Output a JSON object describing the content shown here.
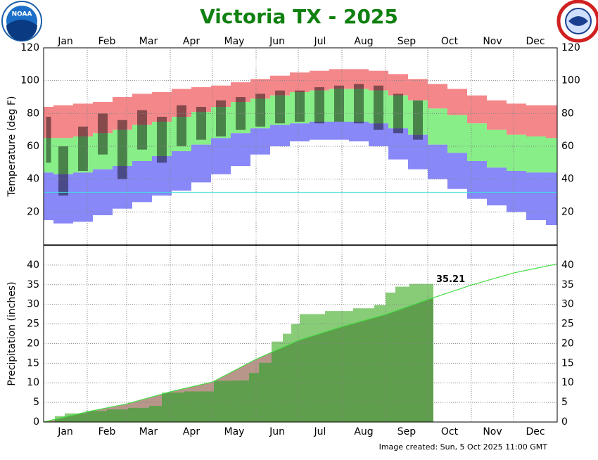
{
  "title": "Victoria TX - 2025",
  "logo": "NOAA",
  "footer": "Image created: Sun, 5 Oct 2025 11:00 GMT",
  "chart_data": [
    {
      "type": "temperature-bands",
      "ylabel": "Temperature (deg F)",
      "xlim": [
        0,
        365
      ],
      "xticks": [
        {
          "value": 0,
          "label": "Jan"
        },
        {
          "value": 31,
          "label": "Feb"
        },
        {
          "value": 59,
          "label": "Mar"
        },
        {
          "value": 90,
          "label": "Apr"
        },
        {
          "value": 120,
          "label": "May"
        },
        {
          "value": 151,
          "label": "Jun"
        },
        {
          "value": 181,
          "label": "Jul"
        },
        {
          "value": 212,
          "label": "Aug"
        },
        {
          "value": 243,
          "label": "Sep"
        },
        {
          "value": 273,
          "label": "Oct"
        },
        {
          "value": 304,
          "label": "Nov"
        },
        {
          "value": 334,
          "label": "Dec"
        }
      ],
      "xtick_side": "top",
      "ylim": [
        0,
        120
      ],
      "yticks": [
        20,
        40,
        60,
        80,
        100,
        120
      ],
      "grid": true,
      "x": [
        0,
        14,
        28,
        42,
        56,
        70,
        84,
        98,
        112,
        126,
        140,
        154,
        168,
        182,
        196,
        210,
        224,
        238,
        252,
        266,
        280,
        294,
        308,
        322,
        336,
        350,
        364
      ],
      "record_high": [
        84,
        85,
        86,
        87,
        90,
        92,
        93,
        95,
        96,
        97,
        99,
        101,
        103,
        105,
        106,
        107,
        107,
        106,
        104,
        101,
        98,
        95,
        91,
        88,
        86,
        85,
        85
      ],
      "normal_high": [
        65,
        65,
        66,
        68,
        70,
        73,
        75,
        78,
        81,
        84,
        87,
        89,
        91,
        93,
        94,
        95,
        95,
        94,
        91,
        88,
        83,
        79,
        74,
        70,
        67,
        66,
        65
      ],
      "normal_low": [
        44,
        43,
        44,
        46,
        48,
        51,
        54,
        57,
        61,
        65,
        68,
        71,
        73,
        74,
        75,
        75,
        75,
        74,
        71,
        67,
        61,
        56,
        51,
        47,
        45,
        44,
        44
      ],
      "record_low": [
        15,
        13,
        14,
        18,
        22,
        26,
        30,
        33,
        38,
        43,
        48,
        55,
        60,
        63,
        64,
        64,
        63,
        60,
        52,
        46,
        40,
        34,
        28,
        24,
        20,
        15,
        12
      ],
      "observed_high": [
        78,
        60,
        72,
        80,
        76,
        82,
        78,
        85,
        84,
        88,
        90,
        92,
        94,
        94,
        96,
        97,
        98,
        97,
        92,
        88,
        null,
        null,
        null,
        null,
        null,
        null,
        null
      ],
      "observed_low": [
        50,
        30,
        45,
        55,
        40,
        58,
        50,
        60,
        64,
        66,
        70,
        72,
        74,
        75,
        74,
        75,
        74,
        70,
        68,
        64,
        null,
        null,
        null,
        null,
        null,
        null,
        null
      ],
      "colors": {
        "record_high": "#f4878a",
        "normal": "#88ee88",
        "record_low": "#8888f8",
        "observed": "#000000"
      },
      "hline": {
        "value": 32,
        "color": "#40e0e0"
      }
    },
    {
      "type": "precipitation",
      "ylabel": "Precipitation (inches)",
      "xlim": [
        0,
        365
      ],
      "xticks": [
        {
          "value": 0,
          "label": "Jan"
        },
        {
          "value": 31,
          "label": "Feb"
        },
        {
          "value": 59,
          "label": "Mar"
        },
        {
          "value": 90,
          "label": "Apr"
        },
        {
          "value": 120,
          "label": "May"
        },
        {
          "value": 151,
          "label": "Jun"
        },
        {
          "value": 181,
          "label": "Jul"
        },
        {
          "value": 212,
          "label": "Aug"
        },
        {
          "value": 243,
          "label": "Sep"
        },
        {
          "value": 273,
          "label": "Oct"
        },
        {
          "value": 304,
          "label": "Nov"
        },
        {
          "value": 334,
          "label": "Dec"
        }
      ],
      "xtick_side": "bottom",
      "ylim": [
        0,
        45
      ],
      "yticks": [
        0,
        5,
        10,
        15,
        20,
        25,
        30,
        35,
        40
      ],
      "grid": true,
      "observed": {
        "x": [
          8,
          15,
          30,
          45,
          60,
          75,
          84,
          100,
          121,
          135,
          146,
          153,
          162,
          170,
          176,
          182,
          200,
          220,
          235,
          243,
          250,
          260,
          277
        ],
        "values": [
          0,
          1.5,
          2.2,
          2.8,
          3.2,
          3.6,
          4.1,
          7.5,
          7.8,
          10.5,
          10.6,
          12.5,
          15.1,
          20.5,
          22.5,
          25,
          27.5,
          28.3,
          29,
          29.8,
          33,
          34.5,
          35.21
        ],
        "color": "#88cc77"
      },
      "normal": {
        "x": [
          0,
          31,
          59,
          90,
          120,
          151,
          181,
          212,
          243,
          273,
          304,
          334,
          365
        ],
        "values": [
          0,
          2.6,
          4.6,
          7.7,
          10.2,
          16.0,
          20.8,
          24.3,
          27.4,
          31.2,
          34.9,
          38.0,
          40.3
        ],
        "color": "#44dd44"
      },
      "deficit_color": "#b8968a",
      "overlap_color": "#5f9e4c"
    }
  ]
}
